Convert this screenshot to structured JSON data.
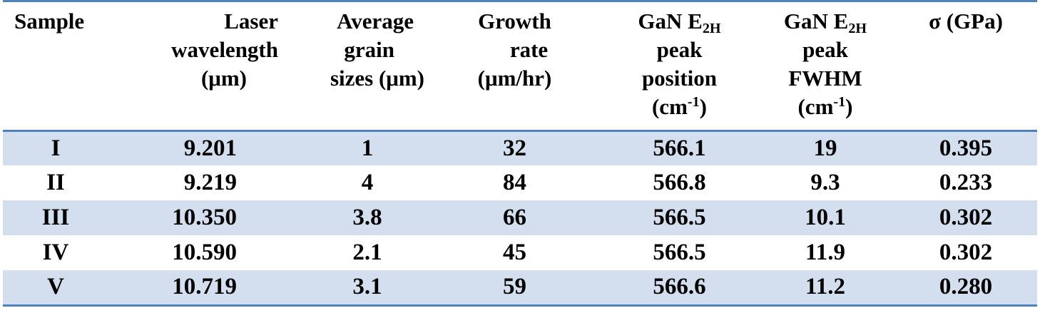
{
  "table": {
    "headers": {
      "sample": [
        "Sample"
      ],
      "laser": [
        "Laser",
        "wavelength",
        "(μm)"
      ],
      "grain": [
        "Average",
        "grain",
        "sizes (μm)"
      ],
      "growth": [
        "Growth",
        "rate",
        "(μm/hr)"
      ],
      "peak_position": {
        "gan": "GaN E",
        "sub": "2H",
        "line2": "peak",
        "line3": "position",
        "unit": "(cm",
        "sup": "-1",
        "close": ")"
      },
      "peak_fwhm": {
        "gan": "GaN E",
        "sub": "2H",
        "line2": "peak",
        "line3": "FWHM",
        "unit": "(cm",
        "sup": "-1",
        "close": ")"
      },
      "sigma": [
        "σ (GPa)"
      ]
    },
    "rows": [
      {
        "sample": "I",
        "laser": "9.201",
        "grain": "1",
        "growth": "32",
        "position": "566.1",
        "fwhm": "19",
        "sigma": "0.395"
      },
      {
        "sample": "II",
        "laser": "9.219",
        "grain": "4",
        "growth": "84",
        "position": "566.8",
        "fwhm": "9.3",
        "sigma": "0.233"
      },
      {
        "sample": "III",
        "laser": "10.350",
        "grain": "3.8",
        "growth": "66",
        "position": "566.5",
        "fwhm": "10.1",
        "sigma": "0.302"
      },
      {
        "sample": "IV",
        "laser": "10.590",
        "grain": "2.1",
        "growth": "45",
        "position": "566.5",
        "fwhm": "11.9",
        "sigma": "0.302"
      },
      {
        "sample": "V",
        "laser": "10.719",
        "grain": "3.1",
        "growth": "59",
        "position": "566.6",
        "fwhm": "11.2",
        "sigma": "0.280"
      }
    ],
    "colors": {
      "rule": "#4f81bd",
      "stripe": "#d3dfee"
    }
  }
}
